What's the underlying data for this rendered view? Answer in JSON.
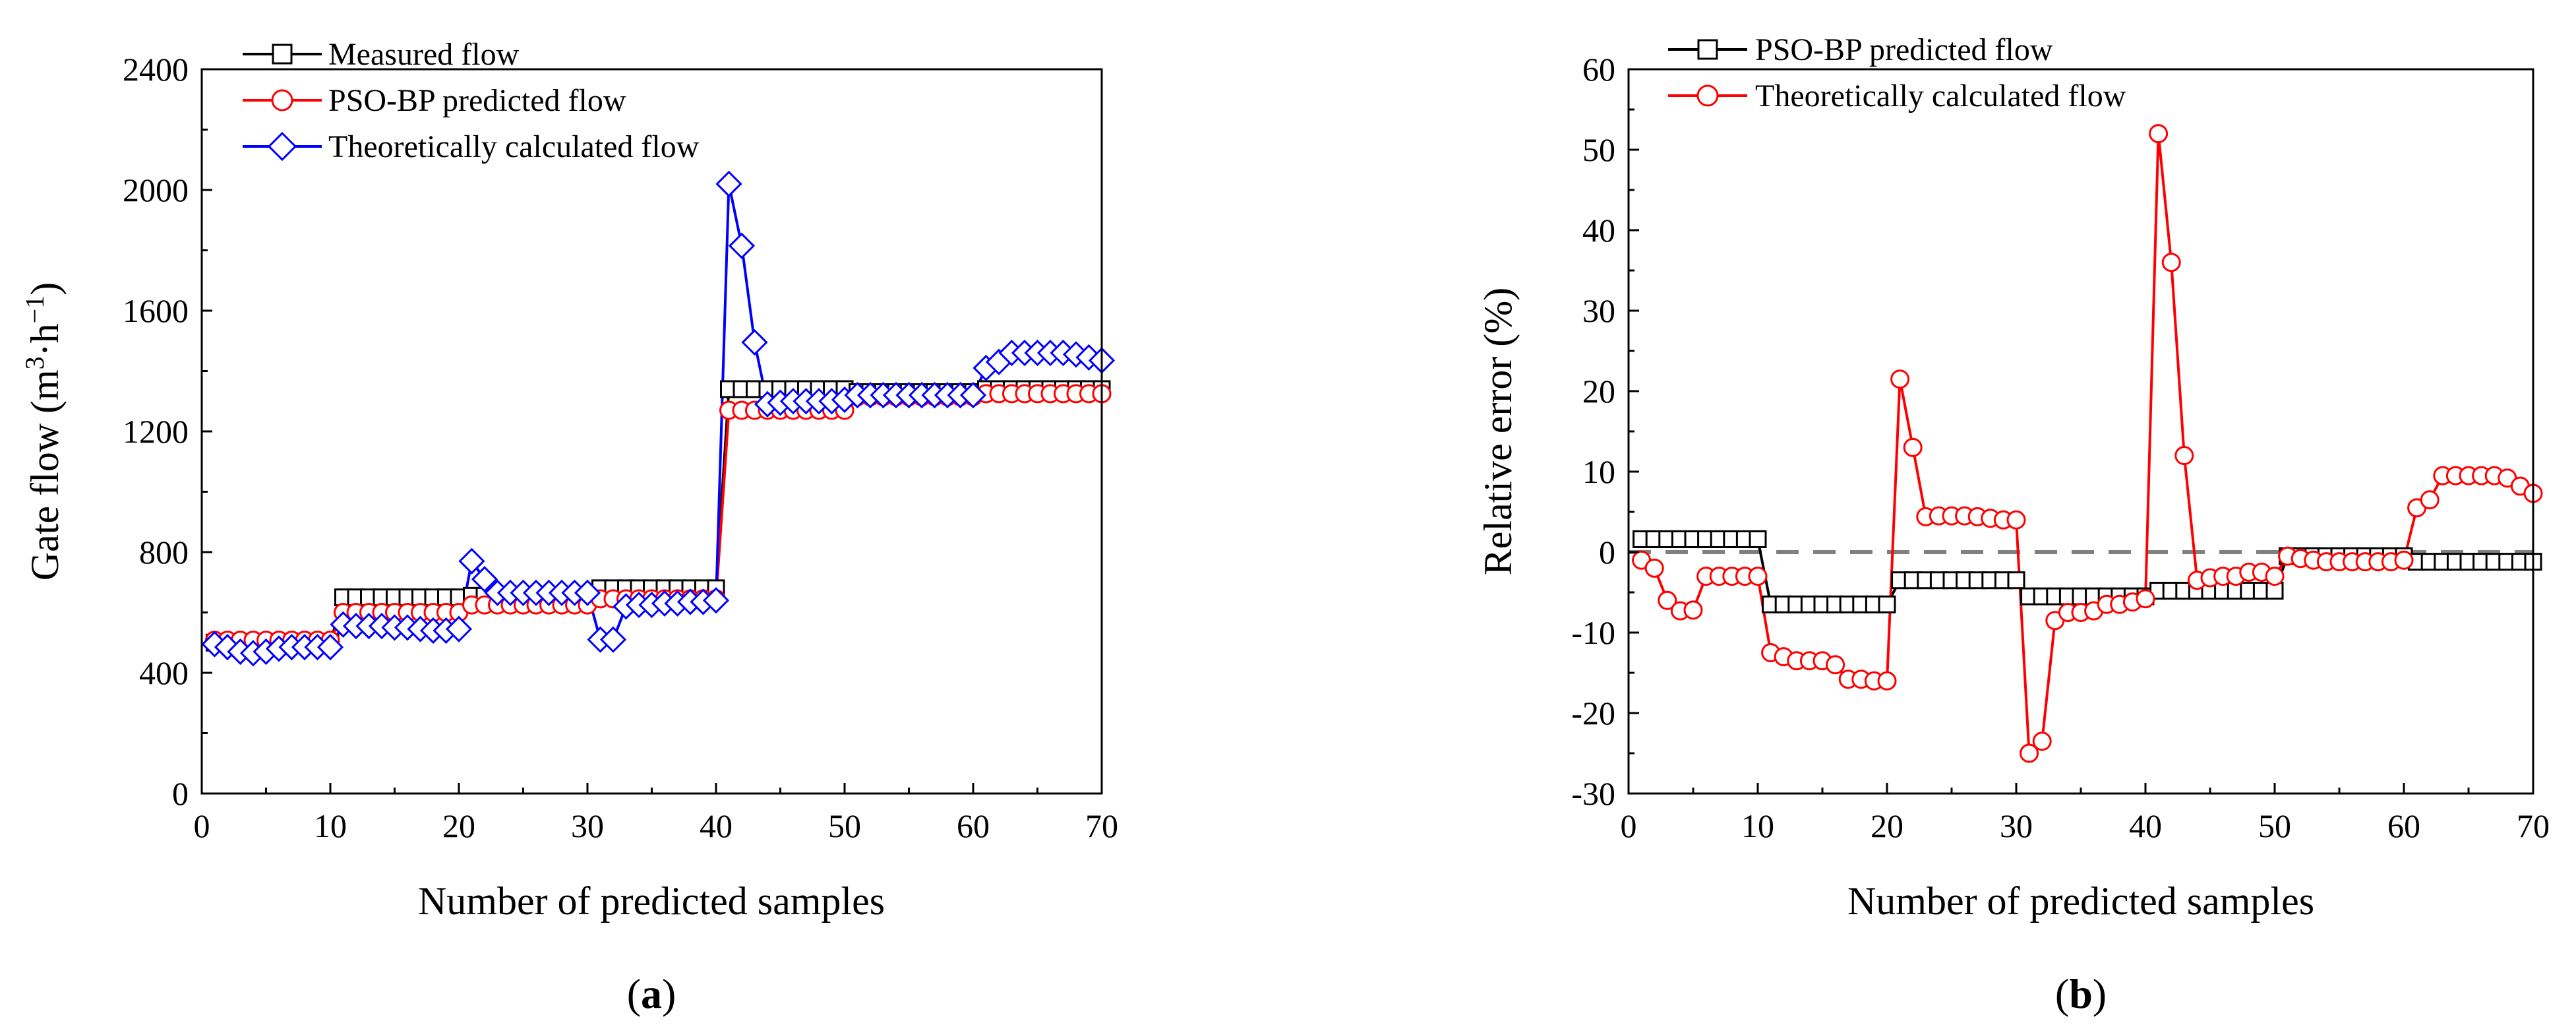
{
  "chart_data": [
    {
      "id": "a",
      "type": "line",
      "caption_letter": "a",
      "xlabel": "Number of predicted samples",
      "ylabel_main": "Gate flow (m",
      "ylabel_sup1": "3",
      "ylabel_mid": "·h",
      "ylabel_sup2": "−1",
      "ylabel_end": ")",
      "xlim": [
        0,
        70
      ],
      "ylim": [
        0,
        2400
      ],
      "xticks": [
        0,
        10,
        20,
        30,
        40,
        50,
        60,
        70
      ],
      "yticks": [
        0,
        400,
        800,
        1200,
        1600,
        2000,
        2400
      ],
      "legend_position": "top-left",
      "series": [
        {
          "name": "Measured flow",
          "color": "#000000",
          "marker": "square",
          "values": [
            500,
            500,
            500,
            500,
            500,
            500,
            500,
            500,
            500,
            500,
            650,
            650,
            650,
            650,
            650,
            650,
            650,
            650,
            650,
            650,
            655,
            655,
            655,
            655,
            655,
            655,
            655,
            655,
            655,
            655,
            680,
            680,
            680,
            680,
            680,
            680,
            680,
            680,
            680,
            680,
            1340,
            1340,
            1340,
            1340,
            1340,
            1340,
            1340,
            1340,
            1340,
            1340,
            1330,
            1330,
            1330,
            1330,
            1330,
            1330,
            1330,
            1330,
            1330,
            1330,
            1340,
            1340,
            1340,
            1340,
            1340,
            1340,
            1340,
            1340,
            1340,
            1340
          ]
        },
        {
          "name": "PSO-BP predicted flow",
          "color": "#ff0000",
          "marker": "circle",
          "values": [
            508,
            508,
            508,
            508,
            508,
            508,
            508,
            508,
            508,
            508,
            600,
            600,
            600,
            600,
            600,
            600,
            600,
            600,
            600,
            600,
            625,
            625,
            625,
            625,
            625,
            625,
            625,
            625,
            625,
            625,
            645,
            645,
            645,
            645,
            645,
            645,
            645,
            645,
            645,
            645,
            1270,
            1270,
            1270,
            1270,
            1270,
            1270,
            1270,
            1270,
            1270,
            1270,
            1315,
            1315,
            1315,
            1315,
            1315,
            1315,
            1315,
            1315,
            1315,
            1315,
            1325,
            1325,
            1325,
            1325,
            1325,
            1325,
            1325,
            1325,
            1325,
            1325
          ]
        },
        {
          "name": "Theoretically calculated flow",
          "color": "#0000ff",
          "marker": "diamond",
          "values": [
            495,
            485,
            470,
            465,
            470,
            480,
            485,
            485,
            485,
            485,
            560,
            555,
            555,
            555,
            550,
            550,
            545,
            540,
            540,
            545,
            770,
            710,
            665,
            665,
            665,
            665,
            665,
            665,
            665,
            665,
            510,
            510,
            620,
            625,
            625,
            630,
            630,
            635,
            635,
            640,
            2020,
            1815,
            1495,
            1290,
            1295,
            1300,
            1300,
            1300,
            1300,
            1305,
            1320,
            1320,
            1320,
            1320,
            1320,
            1320,
            1320,
            1320,
            1320,
            1320,
            1410,
            1430,
            1460,
            1460,
            1460,
            1460,
            1460,
            1455,
            1445,
            1435
          ]
        }
      ]
    },
    {
      "id": "b",
      "type": "line",
      "caption_letter": "b",
      "xlabel": "Number of predicted samples",
      "ylabel": "Relative error (%)",
      "xlim": [
        0,
        70
      ],
      "ylim": [
        -30,
        60
      ],
      "xticks": [
        0,
        10,
        20,
        30,
        40,
        50,
        60,
        70
      ],
      "yticks": [
        -30,
        -20,
        -10,
        0,
        10,
        20,
        30,
        40,
        50,
        60
      ],
      "legend_position": "top-left",
      "reference_line": {
        "y": 0,
        "style": "dashed",
        "color": "#808080"
      },
      "series": [
        {
          "name": "PSO-BP predicted flow",
          "color": "#000000",
          "marker": "square",
          "values": [
            1.6,
            1.6,
            1.6,
            1.6,
            1.6,
            1.6,
            1.6,
            1.6,
            1.6,
            1.6,
            -6.5,
            -6.5,
            -6.5,
            -6.5,
            -6.5,
            -6.5,
            -6.5,
            -6.5,
            -6.5,
            -6.5,
            -3.5,
            -3.5,
            -3.5,
            -3.5,
            -3.5,
            -3.5,
            -3.5,
            -3.5,
            -3.5,
            -3.5,
            -5.5,
            -5.5,
            -5.5,
            -5.5,
            -5.5,
            -5.5,
            -5.5,
            -5.5,
            -5.5,
            -5.5,
            -4.8,
            -4.8,
            -4.8,
            -4.8,
            -4.8,
            -4.8,
            -4.8,
            -4.8,
            -4.8,
            -4.8,
            -0.5,
            -0.5,
            -0.5,
            -0.5,
            -0.5,
            -0.5,
            -0.5,
            -0.5,
            -0.5,
            -0.5,
            -1.2,
            -1.2,
            -1.2,
            -1.2,
            -1.2,
            -1.2,
            -1.2,
            -1.2,
            -1.2,
            -1.2
          ]
        },
        {
          "name": "Theoretically calculated flow",
          "color": "#ff0000",
          "marker": "circle",
          "values": [
            -1,
            -2,
            -6,
            -7.3,
            -7.2,
            -3,
            -3,
            -3,
            -3,
            -3,
            -12.5,
            -13,
            -13.5,
            -13.5,
            -13.5,
            -14,
            -15.8,
            -15.8,
            -16,
            -16,
            21.5,
            13,
            4.4,
            4.5,
            4.5,
            4.5,
            4.4,
            4.2,
            4,
            4,
            -25,
            -23.5,
            -8.5,
            -7.5,
            -7.5,
            -7.3,
            -6.5,
            -6.5,
            -6.2,
            -5.8,
            52,
            36,
            12,
            -3.5,
            -3.2,
            -3,
            -3,
            -2.5,
            -2.5,
            -3,
            -0.5,
            -0.8,
            -1,
            -1.2,
            -1.2,
            -1.2,
            -1.2,
            -1.2,
            -1.2,
            -1,
            5.5,
            6.5,
            9.5,
            9.5,
            9.5,
            9.5,
            9.5,
            9.2,
            8.2,
            7.3
          ]
        }
      ]
    }
  ]
}
